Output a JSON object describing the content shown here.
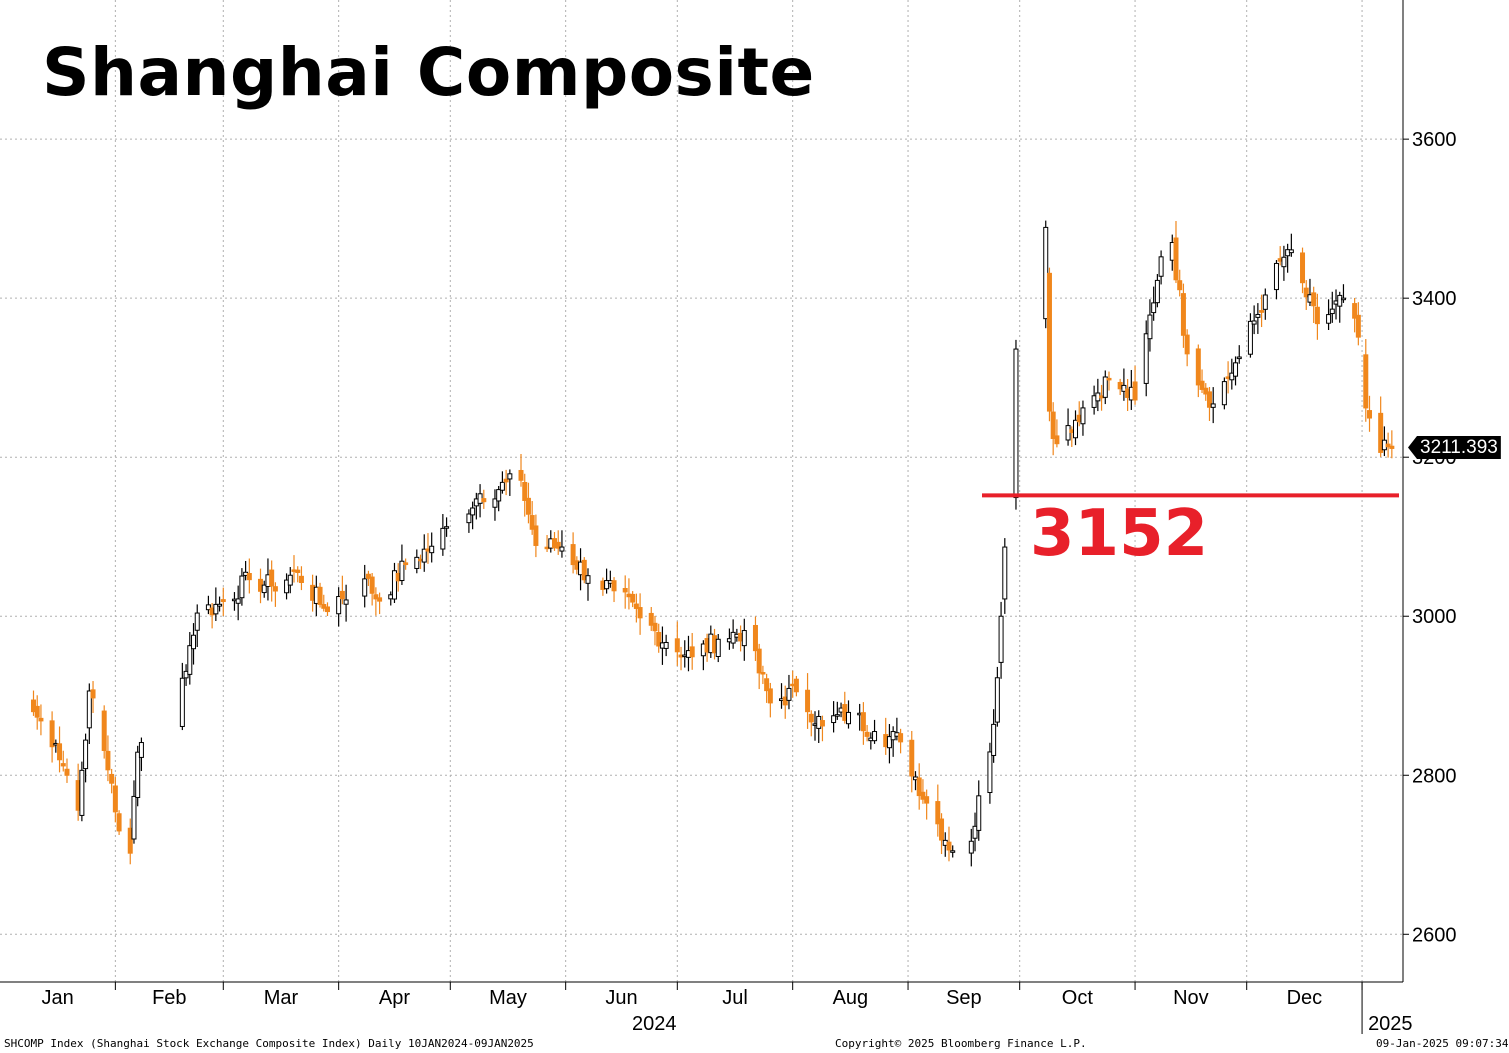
{
  "title": "Shanghai Composite",
  "annotation": {
    "level": 3152,
    "label": "3152",
    "color": "#e8202a"
  },
  "last_price": "3211.393",
  "footer": {
    "left": "SHCOMP Index (Shanghai Stock Exchange Composite Index)  Daily 10JAN2024-09JAN2025",
    "center": "Copyright© 2025 Bloomberg Finance L.P.",
    "right": "09-Jan-2025 09:07:34"
  },
  "colors": {
    "up": "#000000",
    "down": "#f0871c",
    "grid": "#b0b0b0"
  },
  "chart_data": {
    "type": "candlestick",
    "title": "Shanghai Composite",
    "ylim": [
      2540,
      3775
    ],
    "yticks": [
      2600,
      2800,
      3000,
      3200,
      3400,
      3600
    ],
    "y_axis_position": "right",
    "grid": true,
    "x_month_labels": [
      "Jan",
      "Feb",
      "Mar",
      "Apr",
      "May",
      "Jun",
      "Jul",
      "Aug",
      "Sep",
      "Oct",
      "Nov",
      "Dec"
    ],
    "x_year_labels": [
      "2024",
      "2025"
    ],
    "horizontal_line": {
      "value": 3152,
      "label": "3152"
    },
    "last_value": 3211.393,
    "close_series": {
      "dates": [
        "2024-01-10",
        "2024-01-16",
        "2024-01-19",
        "2024-01-22",
        "2024-01-25",
        "2024-01-31",
        "2024-02-02",
        "2024-02-05",
        "2024-02-07",
        "2024-02-19",
        "2024-02-23",
        "2024-02-29",
        "2024-03-08",
        "2024-03-14",
        "2024-03-21",
        "2024-03-28",
        "2024-04-08",
        "2024-04-12",
        "2024-04-19",
        "2024-04-26",
        "2024-05-09",
        "2024-05-20",
        "2024-05-24",
        "2024-05-31",
        "2024-06-07",
        "2024-06-14",
        "2024-06-21",
        "2024-06-28",
        "2024-07-05",
        "2024-07-12",
        "2024-07-19",
        "2024-07-26",
        "2024-08-02",
        "2024-08-09",
        "2024-08-16",
        "2024-08-23",
        "2024-08-30",
        "2024-09-06",
        "2024-09-13",
        "2024-09-18",
        "2024-09-24",
        "2024-09-26",
        "2024-09-27",
        "2024-09-30",
        "2024-10-08",
        "2024-10-09",
        "2024-10-11",
        "2024-10-18",
        "2024-10-25",
        "2024-11-01",
        "2024-11-08",
        "2024-11-11",
        "2024-11-15",
        "2024-11-22",
        "2024-11-29",
        "2024-12-06",
        "2024-12-12",
        "2024-12-20",
        "2024-12-27",
        "2024-12-31",
        "2025-01-02",
        "2025-01-06",
        "2025-01-09"
      ],
      "values": [
        2880,
        2840,
        2800,
        2756,
        2906,
        2790,
        2730,
        2702,
        2829,
        2922,
        3004,
        3015,
        3046,
        3038,
        3055,
        3010,
        3047,
        3019,
        3065,
        3088,
        3154,
        3171,
        3089,
        3087,
        3051,
        3032,
        2998,
        2967,
        2949,
        2971,
        2982,
        2891,
        2905,
        2862,
        2879,
        2855,
        2842,
        2765,
        2705,
        2717,
        2864,
        3000,
        3087,
        3336,
        3489,
        3258,
        3217,
        3262,
        3299,
        3272,
        3452,
        3470,
        3330,
        3267,
        3326,
        3404,
        3461,
        3368,
        3400,
        3351,
        3262,
        3206,
        3211
      ]
    }
  }
}
